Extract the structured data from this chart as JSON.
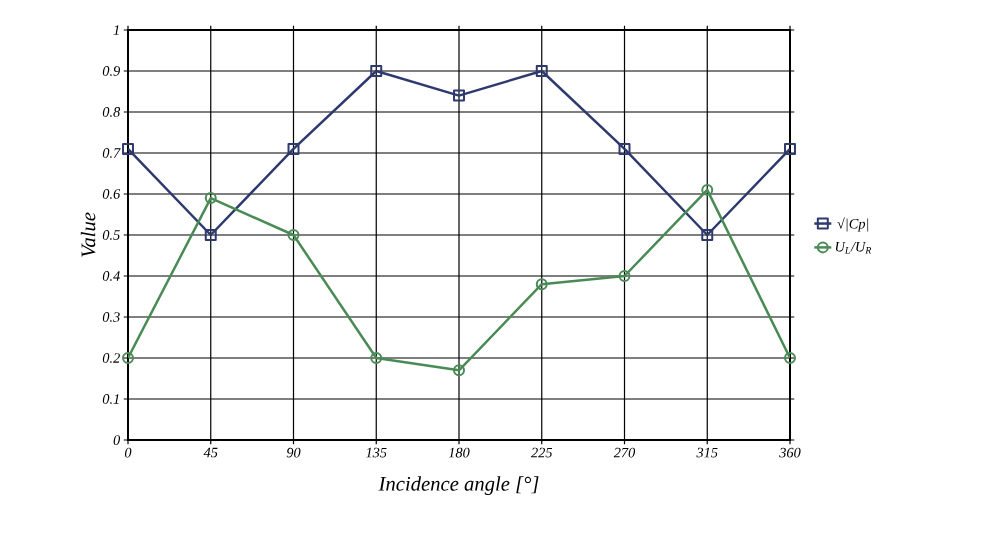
{
  "chart_data": {
    "type": "line",
    "xlabel": "Incidence angle [°]",
    "ylabel": "Value",
    "x": [
      0,
      45,
      90,
      135,
      180,
      225,
      270,
      315,
      360
    ],
    "series": [
      {
        "name": "√|Cp|",
        "color": "#2e3a6e",
        "marker": "square",
        "values": [
          0.71,
          0.5,
          0.71,
          0.9,
          0.84,
          0.9,
          0.71,
          0.5,
          0.71
        ]
      },
      {
        "name": "U$_{L}$/U$_{R}$",
        "color": "#4a8a55",
        "marker": "circle",
        "values": [
          0.2,
          0.59,
          0.5,
          0.2,
          0.17,
          0.38,
          0.4,
          0.61,
          0.2
        ]
      }
    ],
    "xlim": [
      0,
      360
    ],
    "ylim": [
      0,
      1
    ],
    "xticks": [
      0,
      45,
      90,
      135,
      180,
      225,
      270,
      315,
      360
    ],
    "yticks": [
      0,
      0.1,
      0.2,
      0.3,
      0.4,
      0.5,
      0.6,
      0.7,
      0.8,
      0.9,
      1
    ],
    "grid": true,
    "legend": "right",
    "line_style": "solid"
  }
}
